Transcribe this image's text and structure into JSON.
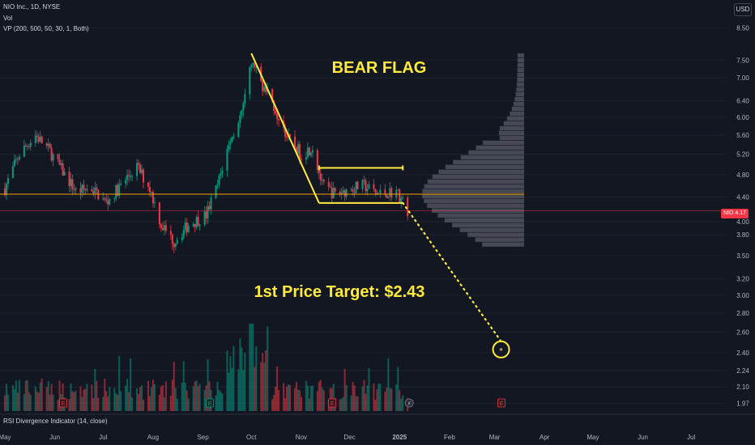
{
  "legend": {
    "symbol_line": "NIO Inc., 1D, NYSE",
    "vol_line": "Vol",
    "vp_line": "VP (200, 500, 50, 30, 1, Both)"
  },
  "currency_button": "USD",
  "price_tag": {
    "ticker": "NIO",
    "value": "4.17"
  },
  "rsi_label": "RSI Divergence Indicator (14, close)",
  "annotations": {
    "pattern_title": "BEAR FLAG",
    "target_text": "1st Price Target: $2.43"
  },
  "colors": {
    "background": "#131722",
    "up": "#089981",
    "down": "#f23645",
    "annotation": "#ffeb3b",
    "orange_line": "#f7a600",
    "profile": "#5d606b"
  },
  "chart_data": {
    "type": "candlestick",
    "y_scale": "log",
    "ylim": [
      1.9,
      8.9
    ],
    "y_ticks": [
      "8.50",
      "7.50",
      "7.00",
      "6.40",
      "6.00",
      "5.60",
      "5.20",
      "4.80",
      "4.40",
      "4.00",
      "3.80",
      "3.50",
      "3.20",
      "3.00",
      "2.80",
      "2.60",
      "2.40",
      "2.24",
      "2.10",
      "1.97"
    ],
    "x_labels": [
      "May",
      "Jun",
      "Jul",
      "Aug",
      "Sep",
      "Oct",
      "Nov",
      "Dec",
      "2025",
      "Feb",
      "Mar",
      "Apr",
      "May",
      "Jun",
      "Jul"
    ],
    "price_path": [
      [
        "2024-05-01",
        4.55
      ],
      [
        "2024-05-10",
        5.2
      ],
      [
        "2024-05-20",
        5.6
      ],
      [
        "2024-05-28",
        5.3
      ],
      [
        "2024-06-05",
        4.9
      ],
      [
        "2024-06-14",
        4.5
      ],
      [
        "2024-06-24",
        4.55
      ],
      [
        "2024-07-03",
        4.3
      ],
      [
        "2024-07-12",
        4.6
      ],
      [
        "2024-07-22",
        4.95
      ],
      [
        "2024-07-30",
        4.55
      ],
      [
        "2024-08-06",
        3.95
      ],
      [
        "2024-08-14",
        3.7
      ],
      [
        "2024-08-23",
        3.95
      ],
      [
        "2024-09-03",
        4.1
      ],
      [
        "2024-09-10",
        4.6
      ],
      [
        "2024-09-18",
        5.5
      ],
      [
        "2024-09-26",
        6.2
      ],
      [
        "2024-10-01",
        7.45
      ],
      [
        "2024-10-08",
        6.8
      ],
      [
        "2024-10-16",
        6.2
      ],
      [
        "2024-10-24",
        5.5
      ],
      [
        "2024-11-01",
        5.2
      ],
      [
        "2024-11-08",
        5.35
      ],
      [
        "2024-11-14",
        4.6
      ],
      [
        "2024-11-22",
        4.45
      ],
      [
        "2024-12-02",
        4.55
      ],
      [
        "2024-12-10",
        4.6
      ],
      [
        "2024-12-18",
        4.45
      ],
      [
        "2024-12-30",
        4.5
      ],
      [
        "2025-01-06",
        4.17
      ]
    ],
    "volume_profile_poc": 4.45,
    "last_price": 4.17,
    "bear_flag": {
      "pole": [
        [
          "2024-10-01",
          7.7
        ],
        [
          "2024-11-12",
          4.3
        ]
      ],
      "channel_top": [
        [
          "2024-11-12",
          4.93
        ],
        [
          "2025-01-03",
          4.93
        ]
      ],
      "channel_bottom": [
        [
          "2024-11-12",
          4.3
        ],
        [
          "2025-01-03",
          4.3
        ]
      ]
    },
    "target_projection": [
      [
        "2025-01-03",
        4.3
      ],
      [
        "2025-03-05",
        2.43
      ]
    ],
    "target_price": 2.43
  }
}
